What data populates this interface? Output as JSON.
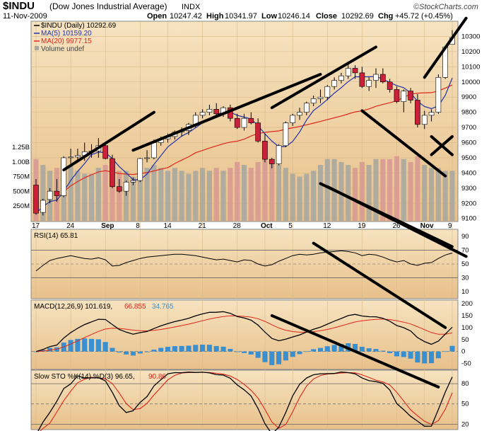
{
  "header": {
    "symbol": "$INDU",
    "name": "(Dow Jones Industrial Average)",
    "exchange": "INDX",
    "date": "11-Nov-2009",
    "open_label": "Open",
    "open": "10247.42",
    "high_label": "High",
    "high": "10341.97",
    "low_label": "Low",
    "low": "10246.14",
    "close_label": "Close",
    "close": "10292.69",
    "chg_label": "Chg",
    "chg": "+45.72 (+0.45%)",
    "brand": "©StockCharts.com"
  },
  "legend": {
    "main": "$INDU (Daily) 10292.69",
    "ma5": "MA(5) 10159.20",
    "ma20": "MA(20) 9977.15",
    "volume": "Volume undef"
  },
  "colors": {
    "up": "#ffffff",
    "down": "#cc1f3a",
    "ma5": "#2233aa",
    "ma20": "#e0261a",
    "vol_up": "#a8a8a0",
    "vol_down": "#d89a92",
    "hist": "#3a8fd0",
    "panel_bg": "#eccb98",
    "trendline": "#000000"
  },
  "axes": {
    "price_ticks": [
      "10300",
      "10200",
      "10100",
      "10000",
      "9900",
      "9800",
      "9700",
      "9600",
      "9500",
      "9400",
      "9300",
      "9200",
      "9100"
    ],
    "volume_ticks": [
      "1.25B",
      "1.00B",
      "750M",
      "500M",
      "250M"
    ],
    "date_labels": [
      "17",
      "24",
      "Sep",
      "8",
      "14",
      "21",
      "28",
      "Oct",
      "5",
      "12",
      "19",
      "26",
      "Nov",
      "9"
    ],
    "rsi_ticks": [
      "90",
      "70",
      "50",
      "30",
      "10"
    ],
    "macd_ticks": [
      "200",
      "150",
      "100",
      "50",
      "0",
      "-50"
    ],
    "sto_ticks": [
      "80",
      "50",
      "20"
    ]
  },
  "chart_data": {
    "type": "candlestick",
    "title": "$INDU (Dow Jones Industrial Average)",
    "x_range": [
      "2009-08-17",
      "2009-11-11"
    ],
    "n_sessions": 61,
    "price_ylim": [
      9080,
      10400
    ],
    "candles": [
      {
        "o": 9320,
        "h": 9360,
        "l": 9125,
        "c": 9135
      },
      {
        "o": 9140,
        "h": 9230,
        "l": 9120,
        "c": 9220
      },
      {
        "o": 9225,
        "h": 9300,
        "l": 9200,
        "c": 9280
      },
      {
        "o": 9280,
        "h": 9360,
        "l": 9210,
        "c": 9250
      },
      {
        "o": 9250,
        "h": 9510,
        "l": 9240,
        "c": 9500
      },
      {
        "o": 9500,
        "h": 9560,
        "l": 9460,
        "c": 9505
      },
      {
        "o": 9505,
        "h": 9560,
        "l": 9470,
        "c": 9515
      },
      {
        "o": 9515,
        "h": 9600,
        "l": 9480,
        "c": 9540
      },
      {
        "o": 9540,
        "h": 9590,
        "l": 9500,
        "c": 9545
      },
      {
        "o": 9545,
        "h": 9630,
        "l": 9500,
        "c": 9580
      },
      {
        "o": 9580,
        "h": 9600,
        "l": 9490,
        "c": 9495
      },
      {
        "o": 9495,
        "h": 9520,
        "l": 9300,
        "c": 9310
      },
      {
        "o": 9310,
        "h": 9360,
        "l": 9270,
        "c": 9280
      },
      {
        "o": 9280,
        "h": 9350,
        "l": 9250,
        "c": 9340
      },
      {
        "o": 9340,
        "h": 9370,
        "l": 9320,
        "c": 9350
      },
      {
        "o": 9350,
        "h": 9500,
        "l": 9340,
        "c": 9495
      },
      {
        "o": 9495,
        "h": 9550,
        "l": 9470,
        "c": 9500
      },
      {
        "o": 9500,
        "h": 9620,
        "l": 9490,
        "c": 9600
      },
      {
        "o": 9600,
        "h": 9640,
        "l": 9580,
        "c": 9625
      },
      {
        "o": 9625,
        "h": 9660,
        "l": 9600,
        "c": 9640
      },
      {
        "o": 9640,
        "h": 9680,
        "l": 9620,
        "c": 9670
      },
      {
        "o": 9670,
        "h": 9700,
        "l": 9640,
        "c": 9680
      },
      {
        "o": 9680,
        "h": 9730,
        "l": 9650,
        "c": 9720
      },
      {
        "o": 9720,
        "h": 9800,
        "l": 9700,
        "c": 9780
      },
      {
        "o": 9780,
        "h": 9820,
        "l": 9760,
        "c": 9800
      },
      {
        "o": 9800,
        "h": 9850,
        "l": 9780,
        "c": 9820
      },
      {
        "o": 9820,
        "h": 9860,
        "l": 9770,
        "c": 9790
      },
      {
        "o": 9790,
        "h": 9840,
        "l": 9770,
        "c": 9830
      },
      {
        "o": 9830,
        "h": 9850,
        "l": 9740,
        "c": 9760
      },
      {
        "o": 9760,
        "h": 9790,
        "l": 9690,
        "c": 9700
      },
      {
        "o": 9700,
        "h": 9790,
        "l": 9680,
        "c": 9760
      },
      {
        "o": 9760,
        "h": 9800,
        "l": 9720,
        "c": 9730
      },
      {
        "o": 9730,
        "h": 9760,
        "l": 9600,
        "c": 9610
      },
      {
        "o": 9610,
        "h": 9660,
        "l": 9470,
        "c": 9490
      },
      {
        "o": 9490,
        "h": 9500,
        "l": 9430,
        "c": 9460
      },
      {
        "o": 9460,
        "h": 9590,
        "l": 9450,
        "c": 9580
      },
      {
        "o": 9580,
        "h": 9740,
        "l": 9570,
        "c": 9730
      },
      {
        "o": 9730,
        "h": 9790,
        "l": 9710,
        "c": 9780
      },
      {
        "o": 9780,
        "h": 9830,
        "l": 9750,
        "c": 9800
      },
      {
        "o": 9800,
        "h": 9870,
        "l": 9780,
        "c": 9860
      },
      {
        "o": 9860,
        "h": 9910,
        "l": 9840,
        "c": 9890
      },
      {
        "o": 9890,
        "h": 9950,
        "l": 9860,
        "c": 9900
      },
      {
        "o": 9900,
        "h": 9980,
        "l": 9880,
        "c": 9970
      },
      {
        "o": 9970,
        "h": 10030,
        "l": 9950,
        "c": 10010
      },
      {
        "o": 10010,
        "h": 10060,
        "l": 9990,
        "c": 10040
      },
      {
        "o": 10040,
        "h": 10120,
        "l": 10020,
        "c": 10090
      },
      {
        "o": 10090,
        "h": 10110,
        "l": 10020,
        "c": 10060
      },
      {
        "o": 10060,
        "h": 10100,
        "l": 9960,
        "c": 9970
      },
      {
        "o": 9970,
        "h": 10030,
        "l": 9940,
        "c": 10010
      },
      {
        "o": 10010,
        "h": 10090,
        "l": 9960,
        "c": 10050
      },
      {
        "o": 10050,
        "h": 10090,
        "l": 9990,
        "c": 10000
      },
      {
        "o": 10000,
        "h": 10020,
        "l": 9930,
        "c": 9950
      },
      {
        "o": 9950,
        "h": 9970,
        "l": 9860,
        "c": 9870
      },
      {
        "o": 9870,
        "h": 9950,
        "l": 9800,
        "c": 9940
      },
      {
        "o": 9940,
        "h": 9960,
        "l": 9860,
        "c": 9880
      },
      {
        "o": 9880,
        "h": 9920,
        "l": 9700,
        "c": 9720
      },
      {
        "o": 9720,
        "h": 9810,
        "l": 9690,
        "c": 9780
      },
      {
        "o": 9780,
        "h": 9820,
        "l": 9740,
        "c": 9800
      },
      {
        "o": 9800,
        "h": 10050,
        "l": 9790,
        "c": 10030
      },
      {
        "o": 10030,
        "h": 10240,
        "l": 10020,
        "c": 10230
      },
      {
        "o": 10247.42,
        "h": 10341.97,
        "l": 10246.14,
        "c": 10292.69
      }
    ],
    "volume": [
      1.05,
      0.95,
      0.85,
      0.9,
      1.0,
      0.95,
      0.85,
      0.8,
      0.8,
      0.9,
      0.95,
      1.05,
      0.85,
      0.85,
      0.75,
      0.85,
      0.9,
      0.95,
      0.9,
      0.85,
      0.9,
      0.85,
      0.8,
      0.85,
      0.9,
      0.85,
      0.9,
      0.85,
      0.9,
      1.0,
      0.95,
      0.9,
      1.0,
      1.05,
      1.0,
      0.95,
      0.9,
      0.8,
      0.75,
      0.8,
      0.85,
      0.95,
      1.05,
      1.05,
      1.0,
      0.95,
      0.9,
      1.0,
      0.95,
      1.05,
      1.05,
      1.05,
      1.1,
      1.05,
      1.0,
      1.1,
      0.95,
      0.9,
      0.9,
      0.85,
      0.85
    ],
    "volume_ylim": [
      0,
      1.55
    ],
    "ma5_range": [
      9200,
      10160
    ],
    "ma20_range": [
      9300,
      9980
    ],
    "rsi": [
      40,
      48,
      55,
      58,
      60,
      62,
      60,
      58,
      57,
      59,
      56,
      47,
      48,
      52,
      55,
      58,
      60,
      61,
      62,
      63,
      64,
      64,
      63,
      62,
      60,
      58,
      56,
      57,
      55,
      53,
      56,
      55,
      50,
      47,
      49,
      54,
      58,
      62,
      64,
      63,
      64,
      66,
      67,
      68,
      69,
      68,
      66,
      62,
      64,
      63,
      60,
      56,
      53,
      55,
      50,
      48,
      51,
      52,
      58,
      63,
      65.81
    ],
    "rsi_ylim": [
      0,
      100
    ],
    "macd": {
      "macd_last": 101.619,
      "signal_last": 66.855,
      "hist_last": 34.765,
      "ylim": [
        -75,
        215
      ]
    },
    "stochastic": {
      "k_last": 96.65,
      "d_last": 90.86,
      "ylim": [
        12,
        100
      ]
    },
    "trendlines": 13
  }
}
